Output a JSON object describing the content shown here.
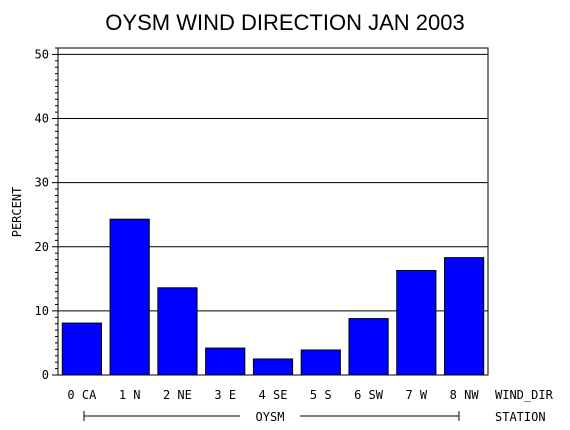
{
  "chart_data": {
    "type": "bar",
    "title": "OYSM WIND DIRECTION JAN 2003",
    "ylabel": "PERCENT",
    "xlabel": "WIND_DIR",
    "group_axis_label": "STATION",
    "group_label": "OYSM",
    "categories": [
      "0 CA",
      "1 N",
      "2 NE",
      "3 E",
      "4 SE",
      "5 S",
      "6 SW",
      "7 W",
      "8 NW"
    ],
    "values": [
      8.1,
      24.3,
      13.6,
      4.2,
      2.5,
      3.9,
      8.8,
      16.3,
      18.3
    ],
    "ylim": [
      0,
      51
    ],
    "yticks": [
      "0",
      "10",
      "20",
      "30",
      "40",
      "50"
    ],
    "grid": "horizontal",
    "bar_color": "#0000ff"
  }
}
